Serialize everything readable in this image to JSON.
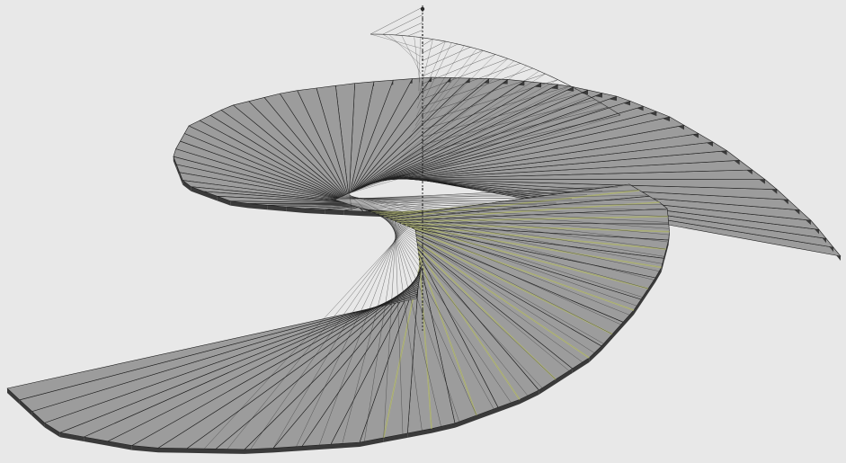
{
  "scene": {
    "subject": "spiral-staircase-model",
    "background_color": "#e8e8e8",
    "tread_fill": "#9c9c9c",
    "tread_side_fill": "#3a3a3a",
    "tread_edge_color": "#1f1f1f",
    "riser_highlight_color": "#b9be7a",
    "wireframe_color": "#2a2a2a"
  }
}
